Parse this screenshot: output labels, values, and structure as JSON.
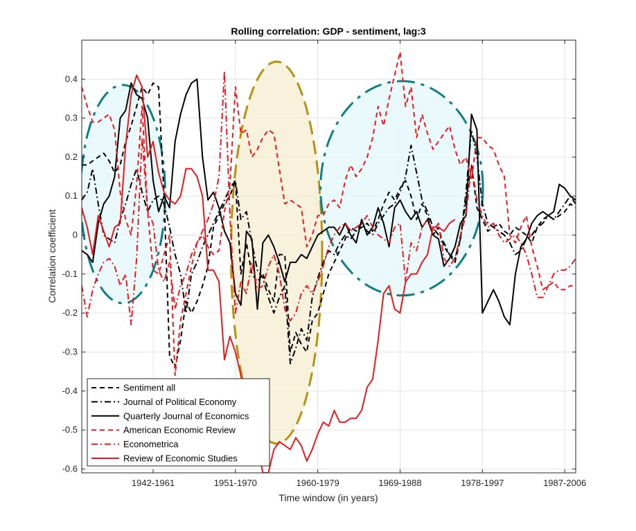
{
  "chart_data": {
    "type": "line",
    "title": "Rolling correlation: GDP - sentiment, lag:3",
    "xlabel": "Time window (in years)",
    "ylabel": "Correlation coefficient",
    "x_range": [
      1,
      91
    ],
    "ylim": [
      -0.61,
      0.5
    ],
    "x_ticks": [
      {
        "x": 14,
        "label": "1942-1961"
      },
      {
        "x": 29,
        "label": "1951-1970"
      },
      {
        "x": 44,
        "label": "1960-1979"
      },
      {
        "x": 59,
        "label": "1969-1988"
      },
      {
        "x": 74,
        "label": "1978-1997"
      },
      {
        "x": 89,
        "label": "1987-2006"
      }
    ],
    "y_ticks": [
      {
        "v": 0.4,
        "label": "0.4"
      },
      {
        "v": 0.3,
        "label": "0.3"
      },
      {
        "v": 0.2,
        "label": "0.2"
      },
      {
        "v": 0.1,
        "label": "0.1"
      },
      {
        "v": 0,
        "label": "0"
      },
      {
        "v": -0.1,
        "label": "-0.1"
      },
      {
        "v": -0.2,
        "label": "-0.2"
      },
      {
        "v": -0.3,
        "label": "-0.3"
      },
      {
        "v": -0.4,
        "label": "-0.4"
      },
      {
        "v": -0.5,
        "label": "-0.5"
      },
      {
        "v": -0.6,
        "label": "-0.6"
      }
    ],
    "grid": true,
    "legend_position": "bottom-left",
    "highlights": [
      {
        "shape": "ellipse",
        "cx": 8.5,
        "cy": 0.105,
        "rx": 7.7,
        "ry": 0.28,
        "fill": "#e6f8fc",
        "stroke": "#0e7e83",
        "dash": "dashdot"
      },
      {
        "shape": "ellipse",
        "cx": 36.5,
        "cy": -0.045,
        "rx": 8.3,
        "ry": 0.49,
        "fill": "#f7efd6",
        "stroke": "#b8900e",
        "dash": "dash"
      },
      {
        "shape": "ellipse",
        "cx": 59.3,
        "cy": 0.12,
        "rx": 14.8,
        "ry": 0.275,
        "fill": "#e6f8fc",
        "stroke": "#0e7e83",
        "dash": "dashdot"
      }
    ],
    "series": [
      {
        "name": "Sentiment all",
        "color": "#000000",
        "dash": "dash",
        "values": [
          0.18,
          0.18,
          0.19,
          0.2,
          0.21,
          0.19,
          0.16,
          0.18,
          0.24,
          0.28,
          0.33,
          0.38,
          0.36,
          0.39,
          0.38,
          0.1,
          -0.31,
          -0.34,
          -0.27,
          -0.17,
          -0.2,
          -0.17,
          -0.13,
          -0.08,
          0.02,
          0.05,
          0.08,
          0.1,
          0.14,
          -0.1,
          -0.02,
          -0.1,
          -0.12,
          -0.1,
          -0.14,
          -0.17,
          -0.05,
          -0.05,
          -0.3,
          -0.25,
          -0.28,
          -0.3,
          -0.22,
          -0.2,
          -0.15,
          -0.1,
          -0.07,
          -0.04,
          -0.01,
          0.02,
          0.01,
          0.02,
          0.03,
          0.01,
          0.04,
          0.08,
          0.11,
          0.09,
          0.12,
          0.14,
          0.1,
          0.04,
          0.08,
          0.05,
          0.0,
          0.02,
          -0.03,
          -0.05,
          -0.07,
          -0.01,
          0.09,
          0.18,
          0.07,
          0.04,
          0.01,
          0.02,
          0.03,
          0.01,
          0.0,
          0.02,
          0.01,
          0.0,
          -0.02,
          0.02,
          0.04,
          0.05,
          0.04,
          0.05,
          0.06,
          0.08,
          0.07
        ]
      },
      {
        "name": "Journal of Political Economy",
        "color": "#000000",
        "dash": "dashdot",
        "values": [
          0.09,
          0.11,
          0.17,
          0.08,
          0.0,
          -0.01,
          -0.02,
          0.04,
          0.08,
          0.13,
          0.17,
          0.11,
          0.06,
          0.09,
          0.1,
          0.08,
          0.02,
          -0.05,
          -0.1,
          -0.2,
          -0.1,
          -0.07,
          -0.03,
          0.0,
          0.03,
          0.06,
          0.09,
          0.12,
          0.14,
          0.04,
          0.06,
          -0.02,
          -0.09,
          -0.11,
          -0.16,
          -0.2,
          -0.16,
          -0.13,
          -0.33,
          -0.29,
          -0.24,
          -0.27,
          -0.16,
          -0.11,
          -0.07,
          -0.04,
          -0.05,
          -0.02,
          0.0,
          -0.01,
          0.01,
          0.03,
          0.01,
          0.0,
          0.03,
          0.05,
          0.07,
          0.08,
          0.11,
          0.15,
          0.23,
          0.16,
          0.09,
          0.06,
          0.02,
          0.0,
          -0.02,
          -0.05,
          -0.06,
          -0.01,
          0.11,
          0.27,
          0.2,
          0.08,
          0.03,
          0.02,
          0.01,
          0.0,
          -0.02,
          -0.05,
          -0.04,
          -0.01,
          0.0,
          0.02,
          0.03,
          0.05,
          0.04,
          0.06,
          0.08,
          0.1,
          0.08
        ]
      },
      {
        "name": "Quarterly Journal of Economics",
        "color": "#000000",
        "dash": "solid",
        "values": [
          -0.04,
          -0.05,
          -0.07,
          0.03,
          0.08,
          0.1,
          0.15,
          0.3,
          0.32,
          0.39,
          0.36,
          0.35,
          0.3,
          0.14,
          0.06,
          0.1,
          0.07,
          0.24,
          0.31,
          0.36,
          0.39,
          0.4,
          0.2,
          0.09,
          0.11,
          0.07,
          0.01,
          -0.02,
          -0.15,
          -0.18,
          0.01,
          -0.01,
          -0.19,
          -0.02,
          0.0,
          -0.03,
          -0.07,
          -0.12,
          -0.07,
          -0.07,
          -0.05,
          -0.06,
          -0.03,
          0.0,
          0.01,
          0.02,
          0.02,
          0.0,
          0.03,
          0.0,
          -0.02,
          0.04,
          0.0,
          0.02,
          0.07,
          0.03,
          -0.03,
          0.07,
          0.09,
          0.06,
          0.04,
          0.06,
          0.02,
          0.04,
          0.0,
          -0.01,
          -0.08,
          -0.06,
          -0.03,
          0.03,
          0.05,
          0.31,
          0.27,
          -0.2,
          -0.17,
          -0.14,
          -0.17,
          -0.21,
          -0.23,
          -0.1,
          -0.03,
          -0.01,
          0.03,
          0.05,
          0.06,
          0.05,
          0.06,
          0.13,
          0.12,
          0.1,
          0.09
        ]
      },
      {
        "name": "American Economic Review",
        "color": "#e8191c",
        "dash": "dash",
        "values": [
          0.38,
          0.33,
          0.29,
          0.29,
          0.3,
          0.31,
          0.27,
          0.11,
          0.04,
          0.0,
          0.13,
          0.33,
          0.06,
          -0.09,
          -0.1,
          -0.05,
          0.0,
          -0.36,
          -0.22,
          -0.15,
          -0.08,
          -0.02,
          0.0,
          -0.03,
          -0.05,
          -0.04,
          0.06,
          0.13,
          0.38,
          0.26,
          0.27,
          0.2,
          0.22,
          0.25,
          0.27,
          0.26,
          0.17,
          0.08,
          0.09,
          0.08,
          0.07,
          -0.03,
          0.0,
          0.05,
          0.05,
          0.08,
          0.09,
          0.07,
          0.14,
          0.18,
          0.15,
          0.17,
          0.2,
          0.25,
          0.33,
          0.28,
          0.35,
          0.41,
          0.47,
          0.33,
          0.38,
          0.25,
          0.31,
          0.26,
          0.22,
          0.24,
          0.26,
          0.28,
          0.22,
          0.18,
          0.2,
          0.14,
          0.25,
          0.25,
          0.23,
          0.22,
          0.18,
          0.15,
          0.0,
          -0.02,
          0.02,
          0.05,
          -0.03,
          -0.08,
          -0.14,
          -0.13,
          -0.12,
          -0.14,
          -0.14,
          -0.13,
          -0.13
        ]
      },
      {
        "name": "Econometrica",
        "color": "#e8191c",
        "dash": "dashdot",
        "values": [
          -0.13,
          -0.21,
          -0.14,
          -0.1,
          -0.07,
          -0.06,
          -0.08,
          -0.13,
          -0.1,
          -0.23,
          -0.06,
          0.25,
          0.06,
          0.03,
          -0.09,
          -0.12,
          -0.07,
          -0.19,
          -0.13,
          -0.1,
          -0.05,
          -0.02,
          0.01,
          0.04,
          0.08,
          0.15,
          0.42,
          0.05,
          -0.2,
          -0.12,
          -0.15,
          -0.07,
          -0.14,
          -0.13,
          -0.08,
          -0.05,
          -0.1,
          -0.19,
          -0.22,
          -0.2,
          -0.15,
          -0.13,
          -0.15,
          -0.12,
          -0.08,
          -0.03,
          0.0,
          0.02,
          0.03,
          0.01,
          0.02,
          0.03,
          0.05,
          0.02,
          0.0,
          -0.01,
          -0.02,
          0.02,
          0.03,
          -0.12,
          -0.02,
          -0.04,
          0.02,
          0.04,
          0.01,
          0.03,
          -0.06,
          -0.08,
          -0.06,
          0.0,
          0.05,
          0.18,
          0.09,
          0.05,
          0.02,
          0.03,
          0.0,
          -0.02,
          -0.01,
          0.0,
          -0.02,
          -0.05,
          -0.1,
          -0.16,
          -0.16,
          -0.13,
          -0.1,
          -0.09,
          -0.09,
          -0.08,
          -0.06
        ]
      },
      {
        "name": "Review of Economic Studies",
        "color": "#e8191c",
        "dash": "solid",
        "values": [
          0.07,
          0.02,
          -0.05,
          0.05,
          0.01,
          -0.03,
          0.02,
          0.03,
          0.23,
          0.36,
          0.41,
          0.38,
          0.2,
          0.24,
          0.16,
          0.11,
          0.09,
          0.08,
          0.1,
          0.17,
          0.17,
          0.15,
          0.1,
          -0.09,
          -0.09,
          -0.12,
          -0.32,
          -0.26,
          -0.3,
          -0.36,
          -0.45,
          -0.51,
          -0.54,
          -0.61,
          -0.61,
          -0.55,
          -0.53,
          -0.54,
          -0.55,
          -0.52,
          -0.54,
          -0.58,
          -0.55,
          -0.51,
          -0.48,
          -0.49,
          -0.45,
          -0.48,
          -0.48,
          -0.47,
          -0.47,
          -0.45,
          -0.39,
          -0.37,
          -0.27,
          -0.15,
          -0.13,
          -0.19,
          -0.2,
          -0.12,
          -0.1,
          -0.1,
          -0.07,
          -0.05,
          0.02,
          0.02,
          0.01,
          0.03,
          0.04
        ]
      }
    ]
  }
}
